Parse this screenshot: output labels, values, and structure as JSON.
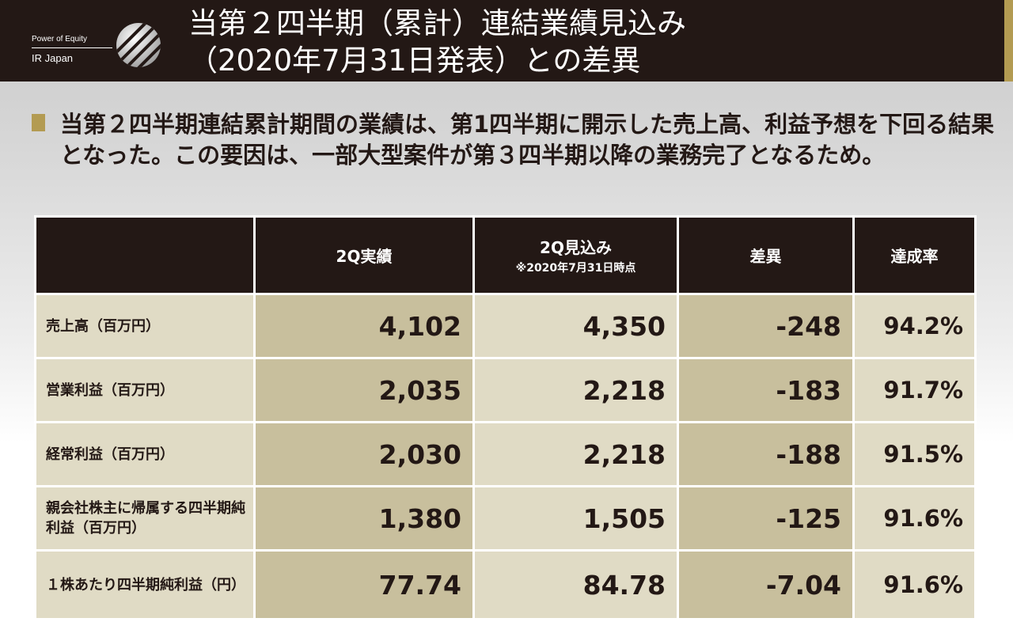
{
  "header": {
    "title_line1": "当第２四半期（累計）連結業績見込み",
    "title_line2": "（2020年7月31日発表）との差異",
    "accent_color": "#b39b52",
    "background_color": "#231815"
  },
  "logo": {
    "tagline": "Power of Equity",
    "name": "IR Japan"
  },
  "summary": {
    "text": "当第２四半期連結累計期間の業績は、第1四半期に開示した売上高、利益予想を下回る結果となった。この要因は、一部大型案件が第３四半期以降の業務完了となるため。"
  },
  "table": {
    "headers": {
      "label": "",
      "actual": "2Q実績",
      "forecast": "2Q見込み",
      "forecast_note": "※2020年7月31日時点",
      "diff": "差異",
      "rate": "達成率"
    },
    "rows": [
      {
        "label": "売上高（百万円）",
        "actual": "4,102",
        "forecast": "4,350",
        "diff": "-248",
        "rate": "94.2%"
      },
      {
        "label": "営業利益（百万円）",
        "actual": "2,035",
        "forecast": "2,218",
        "diff": "-183",
        "rate": "91.7%"
      },
      {
        "label": "経常利益（百万円）",
        "actual": "2,030",
        "forecast": "2,218",
        "diff": "-188",
        "rate": "91.5%"
      },
      {
        "label": "親会社株主に帰属する四半期純利益（百万円）",
        "actual": "1,380",
        "forecast": "1,505",
        "diff": "-125",
        "rate": "91.6%"
      },
      {
        "label": "１株あたり四半期純利益（円）",
        "actual": "77.74",
        "forecast": "84.78",
        "diff": "-7.04",
        "rate": "91.6%"
      }
    ]
  }
}
